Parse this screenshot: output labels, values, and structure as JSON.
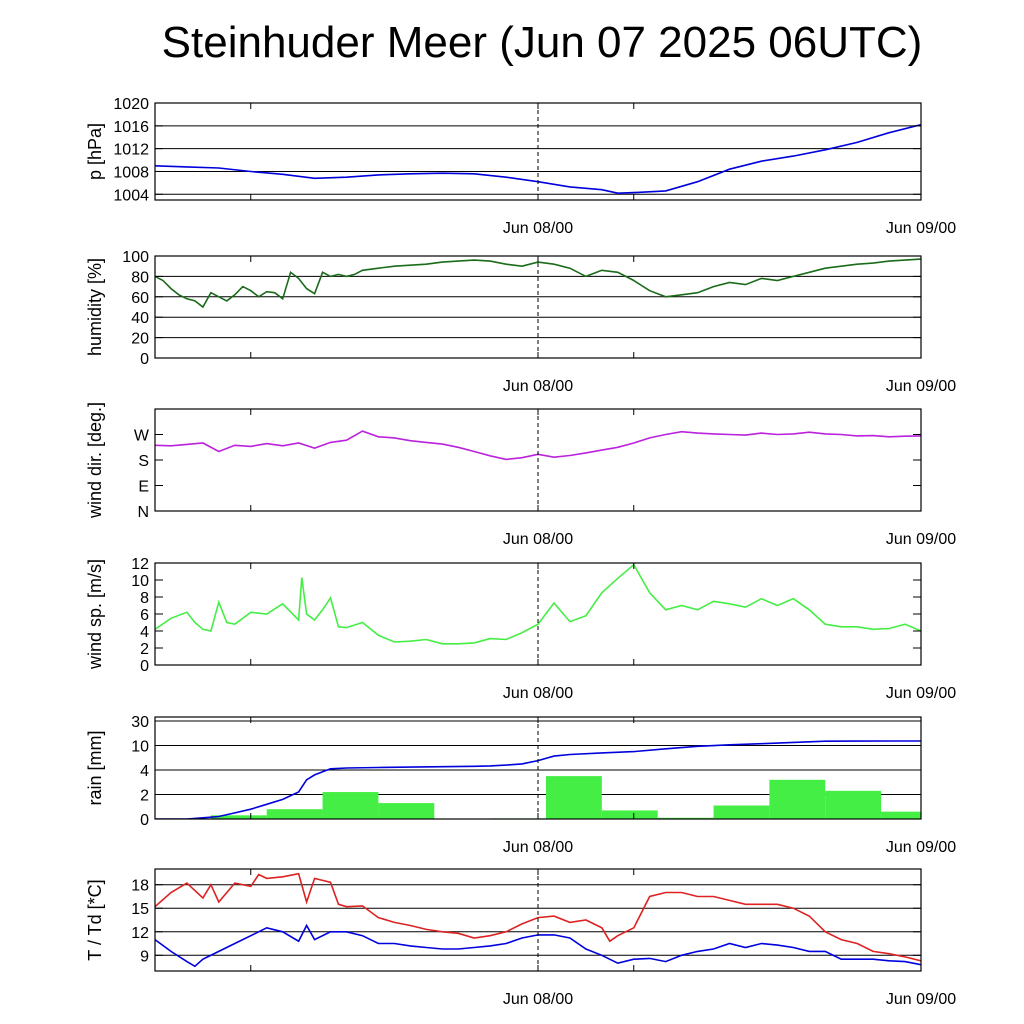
{
  "title": "Steinhuder Meer (Jun 07 2025 06UTC)",
  "x_tick_labels": [
    "Jun 08/00",
    "Jun 09/00"
  ],
  "chart_data": [
    {
      "type": "line",
      "ylabel": "p [hPa]",
      "ylim": [
        1003,
        1020
      ],
      "yticks": [
        1004,
        1008,
        1012,
        1016,
        1020
      ],
      "grid": true,
      "series": [
        {
          "color": "#0000dd",
          "x": [
            0,
            2,
            4,
            6,
            8,
            10,
            12,
            14,
            16,
            18,
            20,
            22,
            24,
            26,
            28,
            29,
            30,
            32,
            34,
            36,
            38,
            40,
            42,
            44,
            46,
            48
          ],
          "y": [
            1009,
            1008.8,
            1008.6,
            1008,
            1007.5,
            1006.8,
            1007,
            1007.4,
            1007.6,
            1007.7,
            1007.6,
            1007,
            1006.2,
            1005.3,
            1004.8,
            1004.2,
            1004.3,
            1004.6,
            1006.2,
            1008.4,
            1009.8,
            1010.7,
            1011.8,
            1013.1,
            1014.8,
            1016.2
          ]
        }
      ]
    },
    {
      "type": "line",
      "ylabel": "humidity [%]",
      "ylim": [
        0,
        100
      ],
      "yticks": [
        0,
        20,
        40,
        60,
        80,
        100
      ],
      "grid": true,
      "series": [
        {
          "color": "#1a6b1a",
          "x": [
            0,
            0.5,
            1,
            1.5,
            2,
            2.5,
            3,
            3.5,
            4,
            4.5,
            5,
            5.5,
            6,
            6.5,
            7,
            7.5,
            8,
            8.5,
            9,
            9.5,
            10,
            10.5,
            11,
            11.5,
            12,
            12.5,
            13,
            14,
            15,
            16,
            17,
            18,
            19,
            20,
            21,
            22,
            23,
            24,
            25,
            26,
            27,
            28,
            29,
            30,
            31,
            32,
            33,
            34,
            35,
            36,
            37,
            38,
            39,
            40,
            41,
            42,
            43,
            44,
            45,
            46,
            47,
            48
          ],
          "y": [
            80,
            76,
            68,
            62,
            58,
            56,
            50,
            64,
            60,
            56,
            62,
            70,
            66,
            60,
            65,
            64,
            58,
            84,
            78,
            68,
            63,
            84,
            80,
            82,
            80,
            82,
            86,
            88,
            90,
            91,
            92,
            94,
            95,
            96,
            95,
            92,
            90,
            94,
            92,
            88,
            80,
            86,
            84,
            76,
            66,
            60,
            62,
            64,
            70,
            74,
            72,
            78,
            76,
            80,
            84,
            88,
            90,
            92,
            93,
            95,
            96,
            97
          ]
        }
      ]
    },
    {
      "type": "line",
      "ylabel": "wind dir. [deg.]",
      "ylim": [
        0,
        360
      ],
      "ytick_values": [
        0,
        90,
        180,
        270
      ],
      "yticks": [
        "N",
        "E",
        "S",
        "W"
      ],
      "grid": false,
      "series": [
        {
          "color": "#bb22dd",
          "x": [
            0,
            1,
            2,
            3,
            4,
            5,
            6,
            7,
            8,
            9,
            10,
            11,
            12,
            13,
            14,
            15,
            16,
            17,
            18,
            19,
            20,
            21,
            22,
            23,
            24,
            25,
            26,
            27,
            28,
            29,
            30,
            31,
            32,
            33,
            34,
            35,
            36,
            37,
            38,
            39,
            40,
            41,
            42,
            43,
            44,
            45,
            46,
            47,
            48
          ],
          "y": [
            232,
            230,
            235,
            240,
            210,
            232,
            228,
            238,
            230,
            240,
            222,
            242,
            250,
            282,
            262,
            258,
            248,
            242,
            236,
            225,
            210,
            195,
            182,
            188,
            200,
            190,
            196,
            205,
            215,
            225,
            240,
            258,
            270,
            280,
            275,
            272,
            270,
            268,
            275,
            270,
            272,
            278,
            272,
            270,
            265,
            266,
            262,
            264,
            265
          ]
        }
      ]
    },
    {
      "type": "line",
      "ylabel": "wind sp. [m/s]",
      "ylim": [
        0,
        12
      ],
      "yticks": [
        0,
        2,
        4,
        6,
        8,
        10,
        12
      ],
      "grid": false,
      "series": [
        {
          "color": "#44ee44",
          "x": [
            0,
            1,
            2,
            2.5,
            3,
            3.5,
            4,
            4.5,
            5,
            6,
            7,
            8,
            9,
            9.2,
            9.5,
            10,
            10.5,
            11,
            11.5,
            12,
            13,
            14,
            15,
            16,
            17,
            18,
            19,
            20,
            21,
            22,
            23,
            24,
            25,
            26,
            27,
            28,
            29,
            30,
            31,
            32,
            33,
            34,
            35,
            36,
            37,
            38,
            39,
            40,
            41,
            42,
            43,
            44,
            45,
            46,
            47,
            48
          ],
          "y": [
            4.2,
            5.5,
            6.2,
            5,
            4.2,
            4,
            7.4,
            5,
            4.8,
            6.2,
            6,
            7.2,
            5.3,
            10.3,
            6,
            5.3,
            6.5,
            7.9,
            4.5,
            4.4,
            5,
            3.5,
            2.7,
            2.8,
            3,
            2.5,
            2.5,
            2.6,
            3.1,
            3,
            3.8,
            4.8,
            7.3,
            5.1,
            5.8,
            8.5,
            10.2,
            11.8,
            8.5,
            6.5,
            7,
            6.5,
            7.5,
            7.2,
            6.8,
            7.8,
            7,
            7.8,
            6.5,
            4.8,
            4.5,
            4.5,
            4.2,
            4.3,
            4.8,
            4
          ]
        }
      ]
    },
    {
      "type": "bar+line",
      "ylabel": "rain [mm]",
      "ytick_values": [
        0,
        2,
        4,
        10,
        30
      ],
      "yticks": [
        "0",
        "2",
        "4",
        "10",
        "30"
      ],
      "ylim": [
        0,
        30
      ],
      "grid": true,
      "bars": {
        "color": "#44ee44",
        "bin_hours": 3.5,
        "x_start": [
          0,
          3.5,
          7,
          10.5,
          14,
          17.5,
          21,
          24.5,
          28,
          31.5,
          35,
          38.5,
          42,
          45.5
        ],
        "values": [
          0,
          0.3,
          0.8,
          2.2,
          1.3,
          0,
          0.05,
          3.5,
          0.7,
          0.1,
          1.1,
          3.2,
          2.3,
          0.6
        ]
      },
      "series": [
        {
          "color": "#0000dd",
          "x": [
            0,
            2,
            3,
            4,
            5,
            6,
            7,
            8,
            9,
            9.5,
            10,
            11,
            12,
            14,
            16,
            18,
            20,
            21,
            22,
            23,
            24,
            25,
            26,
            28,
            30,
            32,
            34,
            36,
            38,
            40,
            42,
            44,
            46,
            48
          ],
          "y": [
            0,
            0,
            0.1,
            0.2,
            0.5,
            0.8,
            1.2,
            1.6,
            2.2,
            3.2,
            3.6,
            4.3,
            4.5,
            4.6,
            4.7,
            4.8,
            4.9,
            5.0,
            5.2,
            5.5,
            6.3,
            7.4,
            7.8,
            8.2,
            8.5,
            9.2,
            9.8,
            10.6,
            11.5,
            12.5,
            13.5,
            13.6,
            13.7,
            13.7
          ]
        }
      ]
    },
    {
      "type": "line",
      "ylabel": "T / Td [*C]",
      "ylim": [
        7,
        20
      ],
      "yticks": [
        9,
        12,
        15,
        18
      ],
      "grid": true,
      "series": [
        {
          "color": "#dd2222",
          "x": [
            0,
            1,
            2,
            3,
            3.5,
            4,
            5,
            6,
            6.5,
            7,
            8,
            9,
            9.5,
            10,
            11,
            11.5,
            12,
            13,
            14,
            15,
            16,
            17,
            18,
            19,
            20,
            21,
            22,
            23,
            24,
            25,
            26,
            27,
            28,
            28.5,
            29,
            30,
            31,
            32,
            33,
            34,
            35,
            36,
            37,
            38,
            39,
            40,
            41,
            42,
            43,
            44,
            45,
            46,
            47,
            48
          ],
          "y": [
            15.2,
            17,
            18.2,
            16.3,
            18,
            15.8,
            18.2,
            17.8,
            19.3,
            18.8,
            19,
            19.4,
            15.8,
            18.8,
            18.3,
            15.5,
            15.2,
            15.3,
            13.8,
            13.2,
            12.8,
            12.3,
            12,
            11.8,
            11.2,
            11.5,
            12,
            13,
            13.8,
            14,
            13.2,
            13.5,
            12.5,
            10.8,
            11.5,
            12.5,
            16.5,
            17,
            17,
            16.5,
            16.5,
            16,
            15.5,
            15.5,
            15.5,
            15,
            14,
            12,
            11,
            10.5,
            9.5,
            9.2,
            8.8,
            8.3
          ]
        },
        {
          "color": "#0000dd",
          "x": [
            0,
            1,
            2,
            2.5,
            3,
            4,
            5,
            6,
            7,
            8,
            9,
            9.5,
            10,
            11,
            12,
            13,
            14,
            15,
            16,
            17,
            18,
            19,
            20,
            21,
            22,
            23,
            24,
            25,
            26,
            27,
            28,
            29,
            30,
            31,
            32,
            33,
            34,
            35,
            36,
            37,
            38,
            39,
            40,
            41,
            42,
            43,
            44,
            45,
            46,
            47,
            48
          ],
          "y": [
            11,
            9.5,
            8.2,
            7.6,
            8.5,
            9.5,
            10.5,
            11.5,
            12.5,
            12,
            10.8,
            12.8,
            11,
            12,
            12,
            11.5,
            10.5,
            10.5,
            10.2,
            10,
            9.8,
            9.8,
            10,
            10.2,
            10.5,
            11.2,
            11.6,
            11.6,
            11.2,
            9.8,
            9,
            8,
            8.5,
            8.6,
            8.2,
            9,
            9.5,
            9.8,
            10.5,
            10,
            10.5,
            10.3,
            10,
            9.5,
            9.5,
            8.5,
            8.5,
            8.5,
            8.3,
            8.2,
            7.8
          ]
        }
      ]
    }
  ]
}
